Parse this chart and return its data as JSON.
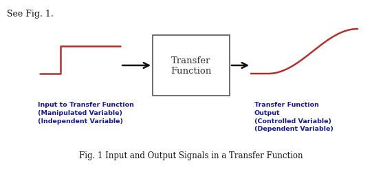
{
  "title_top": "See Fig. 1.",
  "box_text": "Transfer\nFunction",
  "caption": "Fig. 1 Input and Output Signals in a Transfer Function",
  "label_left": "Input to Transfer Function\n(Manipulated Variable)\n(Independent Variable)",
  "label_right": "Transfer Function\nOutput\n(Controlled Variable)\n(Dependent Variable)",
  "signal_color": "#b03030",
  "box_edge_color": "#555555",
  "box_fill": "#ffffff",
  "arrow_color": "#111111",
  "label_color": "#1a1a8c",
  "title_color": "#111111",
  "caption_color": "#111111",
  "bg_color": "#ffffff",
  "fig_w": 5.57,
  "fig_h": 2.51,
  "dpi": 100
}
